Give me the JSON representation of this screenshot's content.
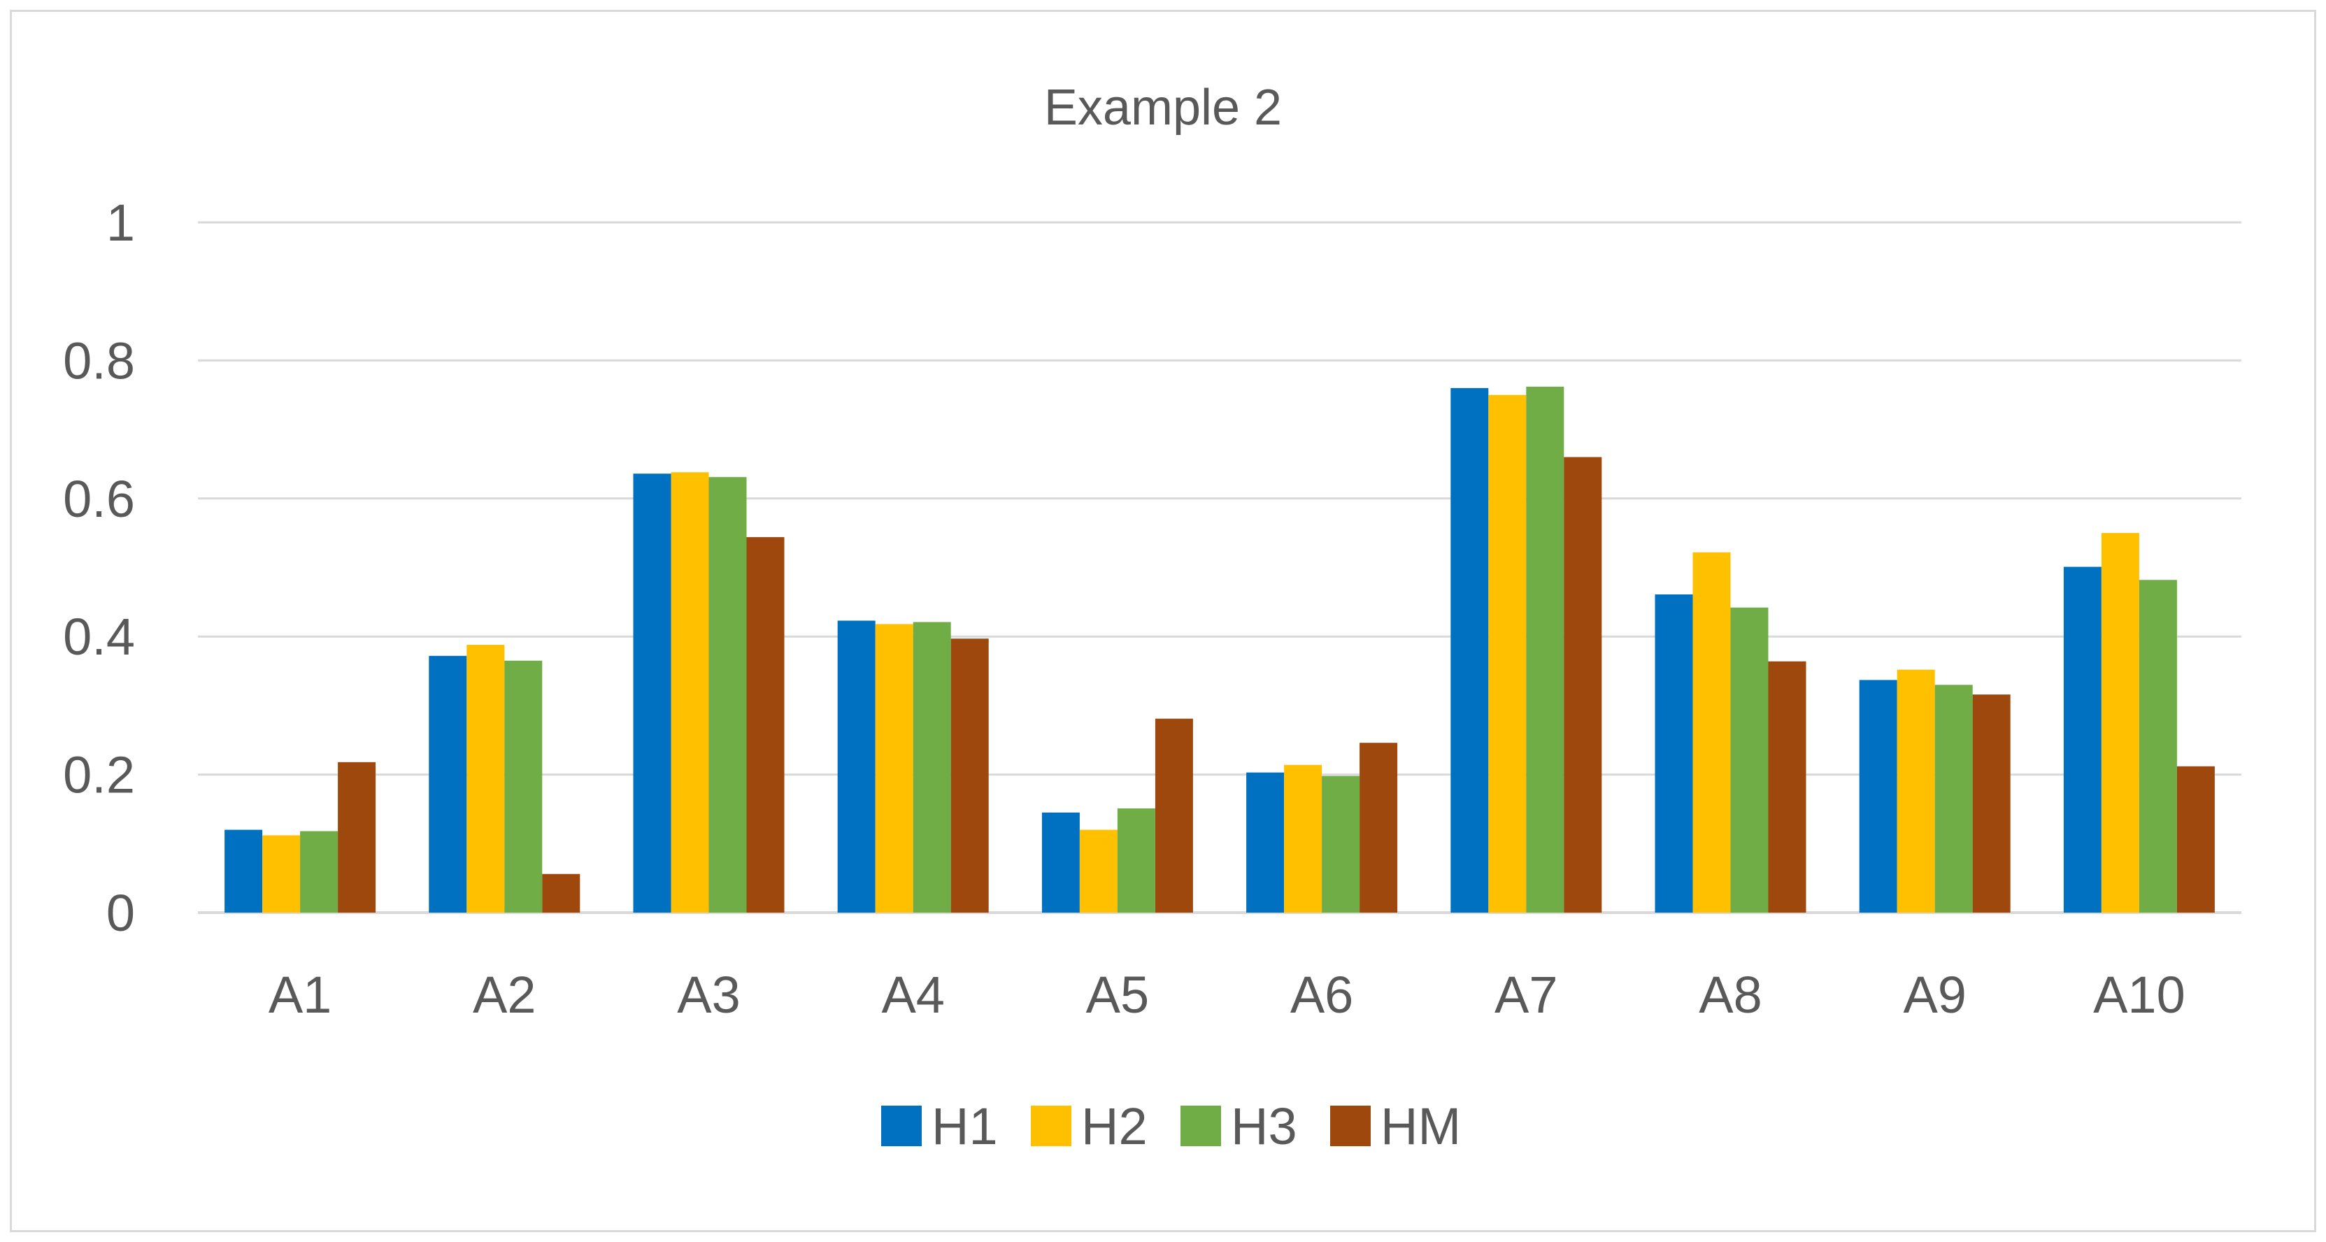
{
  "chart_data": {
    "type": "bar",
    "title": "Example 2",
    "categories": [
      "A1",
      "A2",
      "A3",
      "A4",
      "A5",
      "A6",
      "A7",
      "A8",
      "A9",
      "A10"
    ],
    "series": [
      {
        "name": "H1",
        "color": "#0070c0",
        "values": [
          0.12,
          0.372,
          0.636,
          0.423,
          0.145,
          0.203,
          0.76,
          0.461,
          0.337,
          0.501
        ]
      },
      {
        "name": "H2",
        "color": "#ffc000",
        "values": [
          0.112,
          0.388,
          0.638,
          0.418,
          0.12,
          0.214,
          0.75,
          0.522,
          0.352,
          0.55
        ]
      },
      {
        "name": "H3",
        "color": "#70ad47",
        "values": [
          0.118,
          0.365,
          0.631,
          0.421,
          0.151,
          0.198,
          0.762,
          0.442,
          0.33,
          0.482
        ]
      },
      {
        "name": "HM",
        "color": "#9e480e",
        "values": [
          0.218,
          0.056,
          0.544,
          0.397,
          0.281,
          0.246,
          0.66,
          0.364,
          0.316,
          0.212
        ]
      }
    ],
    "ylim": [
      0,
      1
    ],
    "yticks": [
      "0",
      "0.2",
      "0.4",
      "0.6",
      "0.8",
      "1"
    ],
    "grid": true,
    "legend_position": "bottom"
  }
}
